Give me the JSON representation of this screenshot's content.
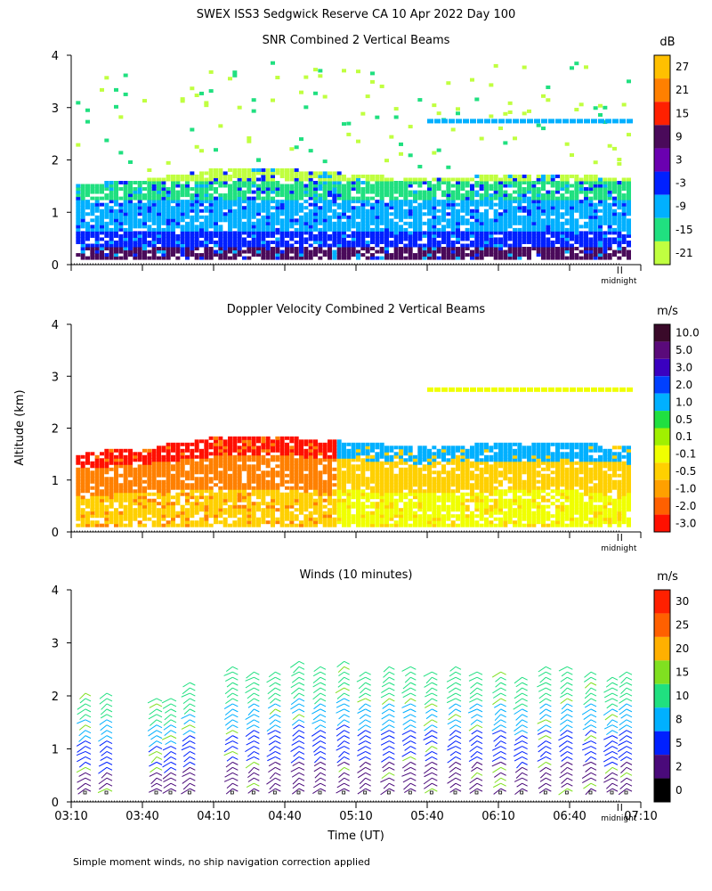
{
  "figure": {
    "title": "SWEX ISS3 Sedgwick Reserve CA  10 Apr 2022 Day 100",
    "ylabel": "Altitude (km)",
    "xlabel": "Time (UT)",
    "footnote": "Simple moment winds, no ship navigation correction applied",
    "midnight_label": "midnight"
  },
  "chart_data": [
    {
      "type": "heatmap",
      "title": "SNR Combined 2 Vertical Beams",
      "unit": "dB",
      "y_ticks": [
        0,
        1,
        2,
        3,
        4
      ],
      "ylim": [
        0,
        4
      ],
      "colorbar": {
        "labels": [
          "27",
          "21",
          "15",
          "9",
          "3",
          "-3",
          "-9",
          "-15",
          "-21"
        ],
        "colors": [
          "#ffc000",
          "#ff8000",
          "#ff2000",
          "#4a0a5a",
          "#6a00b0",
          "#0020ff",
          "#00b0ff",
          "#20e080",
          "#c0ff40"
        ]
      },
      "profile_times": [
        "03:10",
        "03:40",
        "04:10",
        "04:40",
        "05:10",
        "05:40",
        "06:10",
        "06:40",
        "07:10"
      ],
      "profile_top_km": [
        1.5,
        1.6,
        1.8,
        1.8,
        1.7,
        1.6,
        1.7,
        1.7,
        1.6
      ],
      "layers": [
        {
          "from_km": 0.0,
          "to_km": 0.3,
          "color": "#4a0a5a"
        },
        {
          "from_km": 0.3,
          "to_km": 0.6,
          "color": "#0020ff"
        },
        {
          "from_km": 0.6,
          "to_km": 1.2,
          "color": "#00b0ff"
        },
        {
          "from_km": 1.2,
          "to_km": 1.6,
          "color": "#20e080"
        },
        {
          "from_km": 1.6,
          "to_km": 2.0,
          "color": "#c0ff40"
        }
      ],
      "upper_layer_km": 2.75,
      "upper_layer_start": "05:40"
    },
    {
      "type": "heatmap",
      "title": "Doppler Velocity Combined 2 Vertical Beams",
      "unit": "m/s",
      "y_ticks": [
        0,
        1,
        2,
        3,
        4
      ],
      "ylim": [
        0,
        4
      ],
      "colorbar": {
        "labels": [
          "10.0",
          "5.0",
          "3.0",
          "2.0",
          "1.0",
          "0.5",
          "0.1",
          "-0.1",
          "-0.5",
          "-1.0",
          "-2.0",
          "-3.0"
        ],
        "colors": [
          "#3a0a2a",
          "#5a0a7a",
          "#3a00c0",
          "#0040ff",
          "#00b0ff",
          "#20e040",
          "#a0f000",
          "#f0ff00",
          "#ffd000",
          "#ffa000",
          "#ff6000",
          "#ff1000"
        ]
      },
      "profile_times": [
        "03:10",
        "03:40",
        "04:10",
        "04:40",
        "05:10",
        "05:40",
        "06:10",
        "06:40",
        "07:10"
      ],
      "profile_top_km": [
        1.5,
        1.6,
        1.8,
        1.8,
        1.7,
        1.6,
        1.7,
        1.7,
        1.6
      ],
      "regimes": [
        {
          "until": "05:00",
          "low": "#ffd000",
          "mid": "#ff8000",
          "top": "#ff1000"
        },
        {
          "until": "07:10",
          "low": "#f0ff00",
          "mid": "#ffd000",
          "top": "#00b0ff"
        }
      ],
      "upper_layer_km": 2.75,
      "upper_layer_start": "05:40"
    },
    {
      "type": "wind_barbs",
      "title": "Winds (10 minutes)",
      "unit": "m/s",
      "y_ticks": [
        0,
        1,
        2,
        3,
        4
      ],
      "ylim": [
        0,
        4
      ],
      "colorbar": {
        "labels": [
          "30",
          "25",
          "20",
          "15",
          "10",
          "8",
          "5",
          "2",
          "0"
        ],
        "colors": [
          "#ff2000",
          "#ff6000",
          "#ffb000",
          "#80e020",
          "#20e080",
          "#00b0ff",
          "#0020ff",
          "#4a0a7a",
          "#000000"
        ]
      },
      "x_ticks": [
        "03:10",
        "03:40",
        "04:10",
        "04:40",
        "05:10",
        "05:40",
        "06:10",
        "06:40",
        "07:10"
      ],
      "profile_times": [
        "03:16",
        "03:25",
        "03:46",
        "03:52",
        "04:00",
        "04:18",
        "04:27",
        "04:36",
        "04:46",
        "04:55",
        "05:05",
        "05:14",
        "05:24",
        "05:33",
        "05:42",
        "05:52",
        "06:01",
        "06:11",
        "06:20",
        "06:30",
        "06:39",
        "06:49",
        "06:58",
        "07:04"
      ],
      "profile_top_km": [
        2.1,
        2.1,
        2.0,
        2.0,
        2.3,
        2.6,
        2.5,
        2.5,
        2.7,
        2.6,
        2.7,
        2.5,
        2.6,
        2.6,
        2.5,
        2.6,
        2.5,
        2.5,
        2.4,
        2.6,
        2.6,
        2.5,
        2.4,
        2.5
      ]
    }
  ]
}
